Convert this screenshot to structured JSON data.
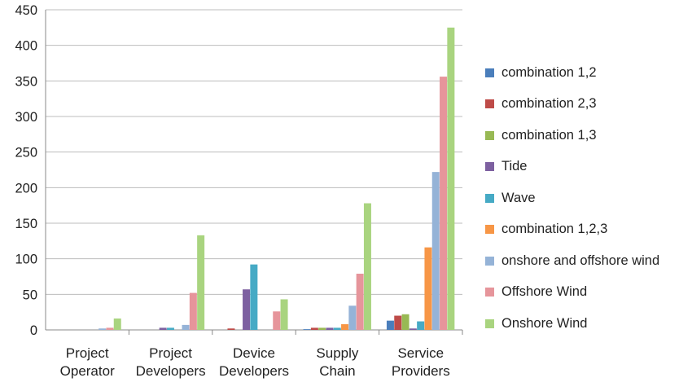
{
  "chart_data": {
    "type": "bar",
    "title": "",
    "xlabel": "",
    "ylabel": "",
    "ylim": [
      0,
      450
    ],
    "yticks": [
      0,
      50,
      100,
      150,
      200,
      250,
      300,
      350,
      400,
      450
    ],
    "grid": "horizontal",
    "legend_position": "right",
    "categories": [
      [
        "Project",
        "Operator"
      ],
      [
        "Project",
        "Developers"
      ],
      [
        "Device",
        "Developers"
      ],
      [
        "Supply",
        "Chain"
      ],
      [
        "Service",
        "Providers"
      ]
    ],
    "series": [
      {
        "name": "combination 1,2",
        "color": "#4a7ebb",
        "values": [
          0,
          0,
          0,
          1,
          13
        ]
      },
      {
        "name": "combination 2,3",
        "color": "#be4b48",
        "values": [
          0,
          0,
          2,
          3,
          20
        ]
      },
      {
        "name": "combination 1,3",
        "color": "#98b954",
        "values": [
          0,
          0,
          0,
          3,
          22
        ]
      },
      {
        "name": "Tide",
        "color": "#7d60a0",
        "values": [
          0,
          3,
          57,
          3,
          2
        ]
      },
      {
        "name": "Wave",
        "color": "#46aac5",
        "values": [
          0,
          3,
          92,
          3,
          12
        ]
      },
      {
        "name": "combination 1,2,3",
        "color": "#f79646",
        "values": [
          0,
          0,
          0,
          8,
          116
        ]
      },
      {
        "name": "onshore and offshore wind",
        "color": "#95b3d7",
        "values": [
          2,
          7,
          0,
          34,
          222
        ]
      },
      {
        "name": "Offshore Wind",
        "color": "#e6959b",
        "values": [
          3,
          52,
          26,
          79,
          356
        ]
      },
      {
        "name": "Onshore Wind",
        "color": "#a9d47f",
        "values": [
          16,
          133,
          43,
          178,
          425
        ]
      }
    ]
  }
}
